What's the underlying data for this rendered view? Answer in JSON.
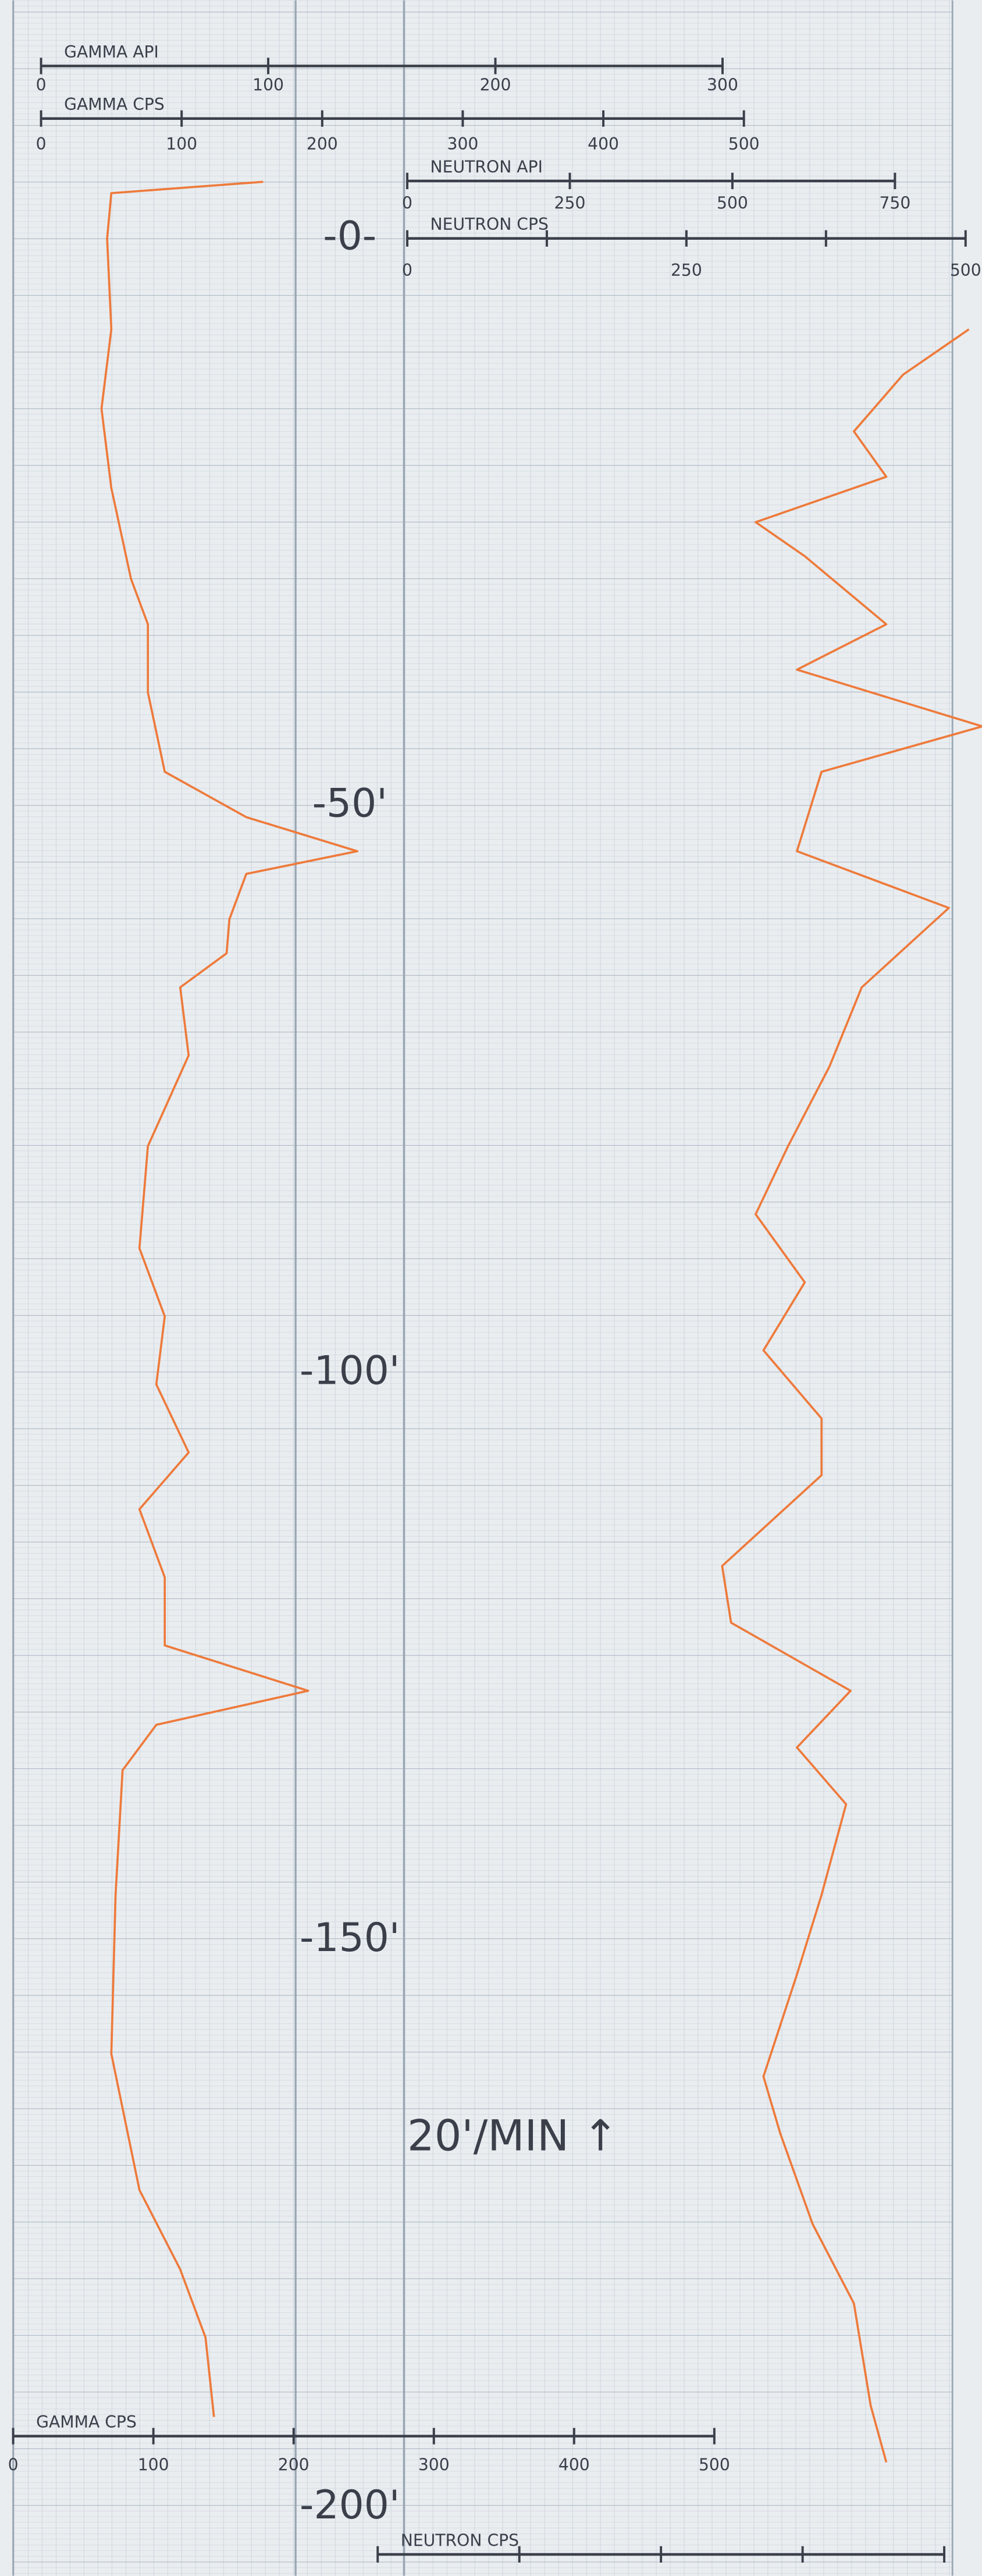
{
  "chart_data": {
    "type": "well-log",
    "ylim": [
      -21,
      206
    ],
    "yticks": [
      {
        "value": 0,
        "label": "-0-"
      },
      {
        "value": 50,
        "label": "-50'"
      },
      {
        "value": 100,
        "label": "-100'"
      },
      {
        "value": 150,
        "label": "-150'"
      },
      {
        "value": 200,
        "label": "-200'"
      }
    ],
    "scales": [
      {
        "title": "GAMMA API",
        "xlim": [
          0,
          300
        ],
        "xticks": [
          0,
          100,
          200,
          300
        ]
      },
      {
        "title": "GAMMA CPS",
        "xlim": [
          0,
          500
        ],
        "xticks": [
          0,
          100,
          200,
          300,
          400,
          500
        ]
      },
      {
        "title": "NEUTRON API",
        "xlim": [
          0,
          750
        ],
        "xticks": [
          0,
          250,
          500,
          750
        ]
      },
      {
        "title": "NEUTRON CPS",
        "xlim": [
          0,
          500
        ],
        "xticks": [
          0,
          250,
          500
        ],
        "minor_ticks": [
          125,
          375
        ]
      },
      {
        "title": "GAMMA CPS",
        "xlim": [
          0,
          500
        ],
        "xticks": [
          0,
          100,
          200,
          300,
          400,
          500
        ]
      },
      {
        "title": "NEUTRON CPS",
        "xlim": [
          0,
          500
        ],
        "minor_ticks": [
          0,
          125,
          250,
          375,
          500
        ]
      }
    ],
    "series": [
      {
        "color": "#ee7a3b",
        "depth": [
          -5,
          -4,
          0,
          8,
          15,
          22,
          30,
          34,
          40,
          47,
          51,
          54,
          56,
          60,
          63,
          66,
          72,
          80,
          89,
          95,
          101,
          107,
          112,
          118,
          124,
          128,
          131,
          135,
          146,
          160,
          172,
          179,
          185,
          192
        ],
        "values": [
          158,
          50,
          47,
          50,
          43,
          50,
          64,
          76,
          76,
          88,
          146,
          225,
          146,
          134,
          132,
          99,
          105,
          76,
          70,
          88,
          82,
          105,
          70,
          88,
          88,
          190,
          82,
          58,
          53,
          50,
          70,
          99,
          117,
          123
        ]
      },
      {
        "color": "#ee7a3b",
        "depth": [
          8,
          12,
          17,
          21,
          25,
          28,
          34,
          38,
          43,
          47,
          54,
          59,
          66,
          73,
          80,
          86,
          92,
          98,
          104,
          109,
          117,
          122,
          128,
          133,
          138,
          146,
          153,
          162,
          167,
          175,
          182,
          191,
          196
        ],
        "values": [
          503,
          444,
          400,
          429,
          312,
          356,
          429,
          349,
          515,
          371,
          349,
          485,
          407,
          378,
          341,
          312,
          356,
          319,
          371,
          371,
          282,
          290,
          397,
          349,
          393,
          371,
          349,
          319,
          334,
          363,
          400,
          415,
          429
        ]
      }
    ],
    "annotation": "20'/MIN ↑"
  }
}
